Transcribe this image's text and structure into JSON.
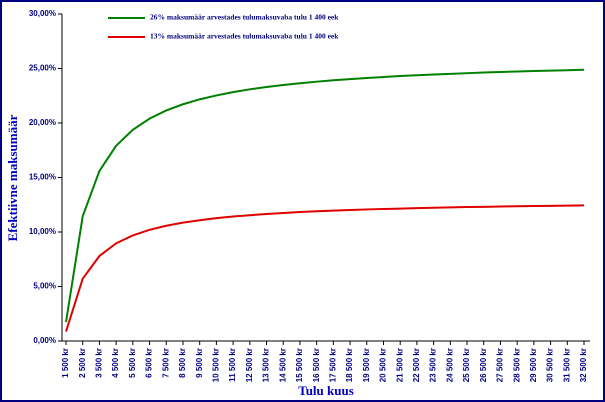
{
  "chart_data": {
    "type": "line",
    "x_label": "Tulu kuus",
    "y_label": "Efektiivne maksumäär",
    "categories": [
      "1 500 kr",
      "2 500 kr",
      "3 500 kr",
      "4 500 kr",
      "5 500 kr",
      "6 500 kr",
      "7 500 kr",
      "8 500 kr",
      "9 500 kr",
      "10 500 kr",
      "11 500 kr",
      "12 500 kr",
      "13 500 kr",
      "14 500 kr",
      "15 500 kr",
      "16 500 kr",
      "17 500 kr",
      "18 500 kr",
      "19 500 kr",
      "20 500 kr",
      "21 500 kr",
      "22 500 kr",
      "23 500 kr",
      "24 500 kr",
      "25 500 kr",
      "26 500 kr",
      "27 500 kr",
      "28 500 kr",
      "29 500 kr",
      "30 500 kr",
      "31 500 kr",
      "32 500 kr"
    ],
    "series": [
      {
        "name": "26% maksumäär arvestades tulumaksuvaba tulu 1 400 eek",
        "color": "#008000",
        "values": [
          1.73,
          11.44,
          15.6,
          17.91,
          19.38,
          20.4,
          21.15,
          21.72,
          22.17,
          22.53,
          22.83,
          23.09,
          23.3,
          23.49,
          23.65,
          23.79,
          23.92,
          24.03,
          24.13,
          24.22,
          24.31,
          24.38,
          24.45,
          24.51,
          24.57,
          24.63,
          24.68,
          24.72,
          24.77,
          24.81,
          24.84,
          24.88
        ]
      },
      {
        "name": "13% maksumäär arvestades tulumaksuvaba tulu 1 400 eek",
        "color": "#e00000",
        "values": [
          0.87,
          5.72,
          7.8,
          8.96,
          9.69,
          10.2,
          10.57,
          10.86,
          11.08,
          11.27,
          11.42,
          11.54,
          11.65,
          11.74,
          11.83,
          11.9,
          11.96,
          12.02,
          12.07,
          12.11,
          12.15,
          12.19,
          12.23,
          12.26,
          12.29,
          12.31,
          12.34,
          12.36,
          12.38,
          12.4,
          12.42,
          12.44
        ]
      }
    ],
    "ylim": [
      0,
      30
    ],
    "yticks": [
      {
        "value": 0,
        "label": "0,00%"
      },
      {
        "value": 5,
        "label": "5,00%"
      },
      {
        "value": 10,
        "label": "10,00%"
      },
      {
        "value": 15,
        "label": "15,00%"
      },
      {
        "value": 20,
        "label": "20,00%"
      },
      {
        "value": 25,
        "label": "25,00%"
      },
      {
        "value": 30,
        "label": "30,00%"
      }
    ],
    "grid": false,
    "legend": "top-left"
  }
}
